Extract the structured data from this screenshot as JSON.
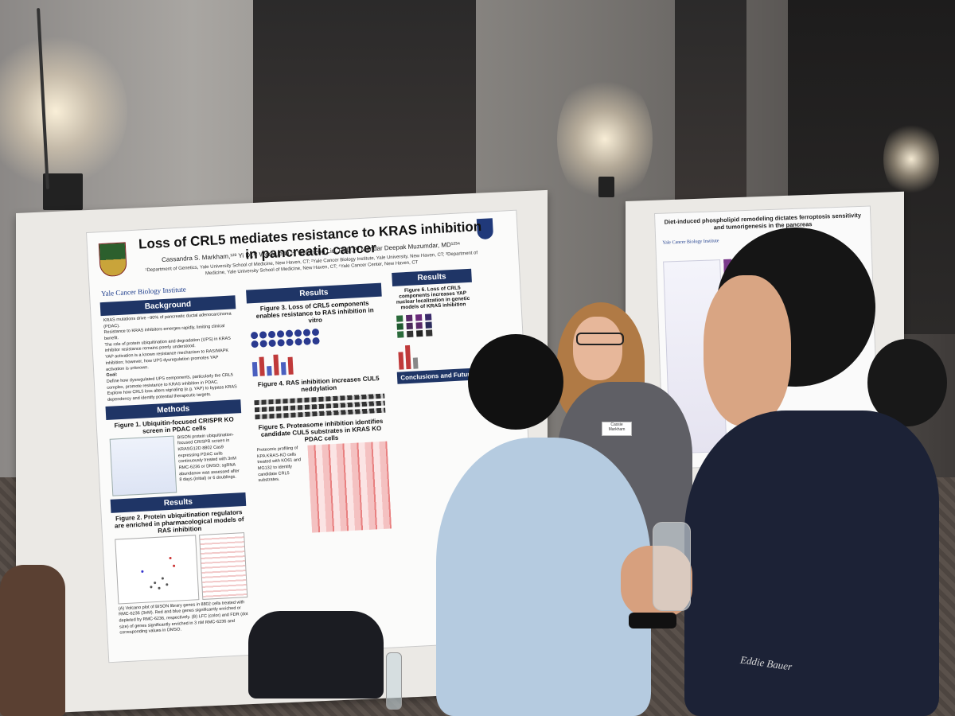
{
  "main_poster": {
    "title": "Loss of CRL5 mediates resistance to KRAS inhibition in pancreatic cancer",
    "authors": "Cassandra S. Markham,¹²³ Yi Di,¹² Wenxue Li,¹² Yansheng Liu, PhD,¹²³ Mandar Deepak Muzumdar, MD¹²³⁴",
    "affiliations": "¹Department of Genetics, Yale University School of Medicine, New Haven, CT; ²Yale Cancer Biology Institute, Yale University, New Haven, CT; ³Department of Medicine, Yale University School of Medicine, New Haven, CT; ⁴Yale Cancer Center, New Haven, CT",
    "logo_text": "Yale Cancer Biology Institute",
    "sections": {
      "background": "Background",
      "background_bullets": [
        "KRAS mutations drive ~90% of pancreatic ductal adenocarcinoma (PDAC).",
        "Resistance to KRAS inhibitors emerges rapidly, limiting clinical benefit.",
        "The role of protein ubiquitination and degradation (UPS) in KRAS inhibitor resistance remains poorly understood.",
        "YAP activation is a known resistance mechanism to RAS/MAPK inhibition; however, how UPS dysregulation promotes YAP activation is unknown."
      ],
      "goal": "Goal:",
      "goal_bullets": [
        "Define how dysregulated UPS components, particularly the CRL5 complex, promote resistance to KRAS inhibition in PDAC.",
        "Explore how CRL5 loss alters signaling (e.g. YAP) to bypass KRAS dependency and identify potential therapeutic targets."
      ],
      "methods": "Methods",
      "fig1": "Figure 1. Ubiquitin-focused CRISPR KO screen in PDAC cells",
      "fig1_text": "BISON protein ubiquitination-focused CRISPR screen in KRASG12D 8802 Cas9 expressing PDAC cells continuously treated with 3nM RMC-6236 or DMSO; sgRNA abundance was assessed after 8 days (initial) or 6 doublings.",
      "results_left": "Results",
      "fig2": "Figure 2. Protein ubiquitination regulators are enriched in pharmacological models of RAS inhibition",
      "fig2_caption": "(A) Volcano plot of BISON library genes in 8802 cells treated with RMC-6236 (3nM). Red and blue genes significantly enriched or depleted by RMC-6236, respectively. (B) LFC (color) and FDR (dot size) of genes significantly enriched in 3 nM RMC-6236 and corresponding values in DMSO.",
      "results_mid": "Results",
      "fig3": "Figure 3. Loss of CRL5 components enables resistance to RAS inhibition in vitro",
      "fig4": "Figure 4. RAS inhibition increases CUL5 neddylation",
      "fig5": "Figure 5. Proteasome inhibition identifies candidate CUL5 substrates in KRAS KO PDAC cells",
      "fig5_text": "Proteomic profiling of KPA KRAS-KO cells treated with KO61 and MG132 to identify candidate CRL5 substrates.",
      "results_right": "Results",
      "fig6": "Figure 6. Loss of CRL5 components increases YAP nuclear localization in genetic models of KRAS inhibition",
      "conclusions": "Conclusions and Future"
    }
  },
  "second_poster": {
    "title": "Diet-induced phospholipid remodeling dictates ferroptosis sensitivity and tumorigenesis in the pancreas",
    "logo_text": "Yale Cancer Biology Institute"
  },
  "name_badge": "Cassie Markham",
  "jacket_brand": "Eddie Bauer"
}
